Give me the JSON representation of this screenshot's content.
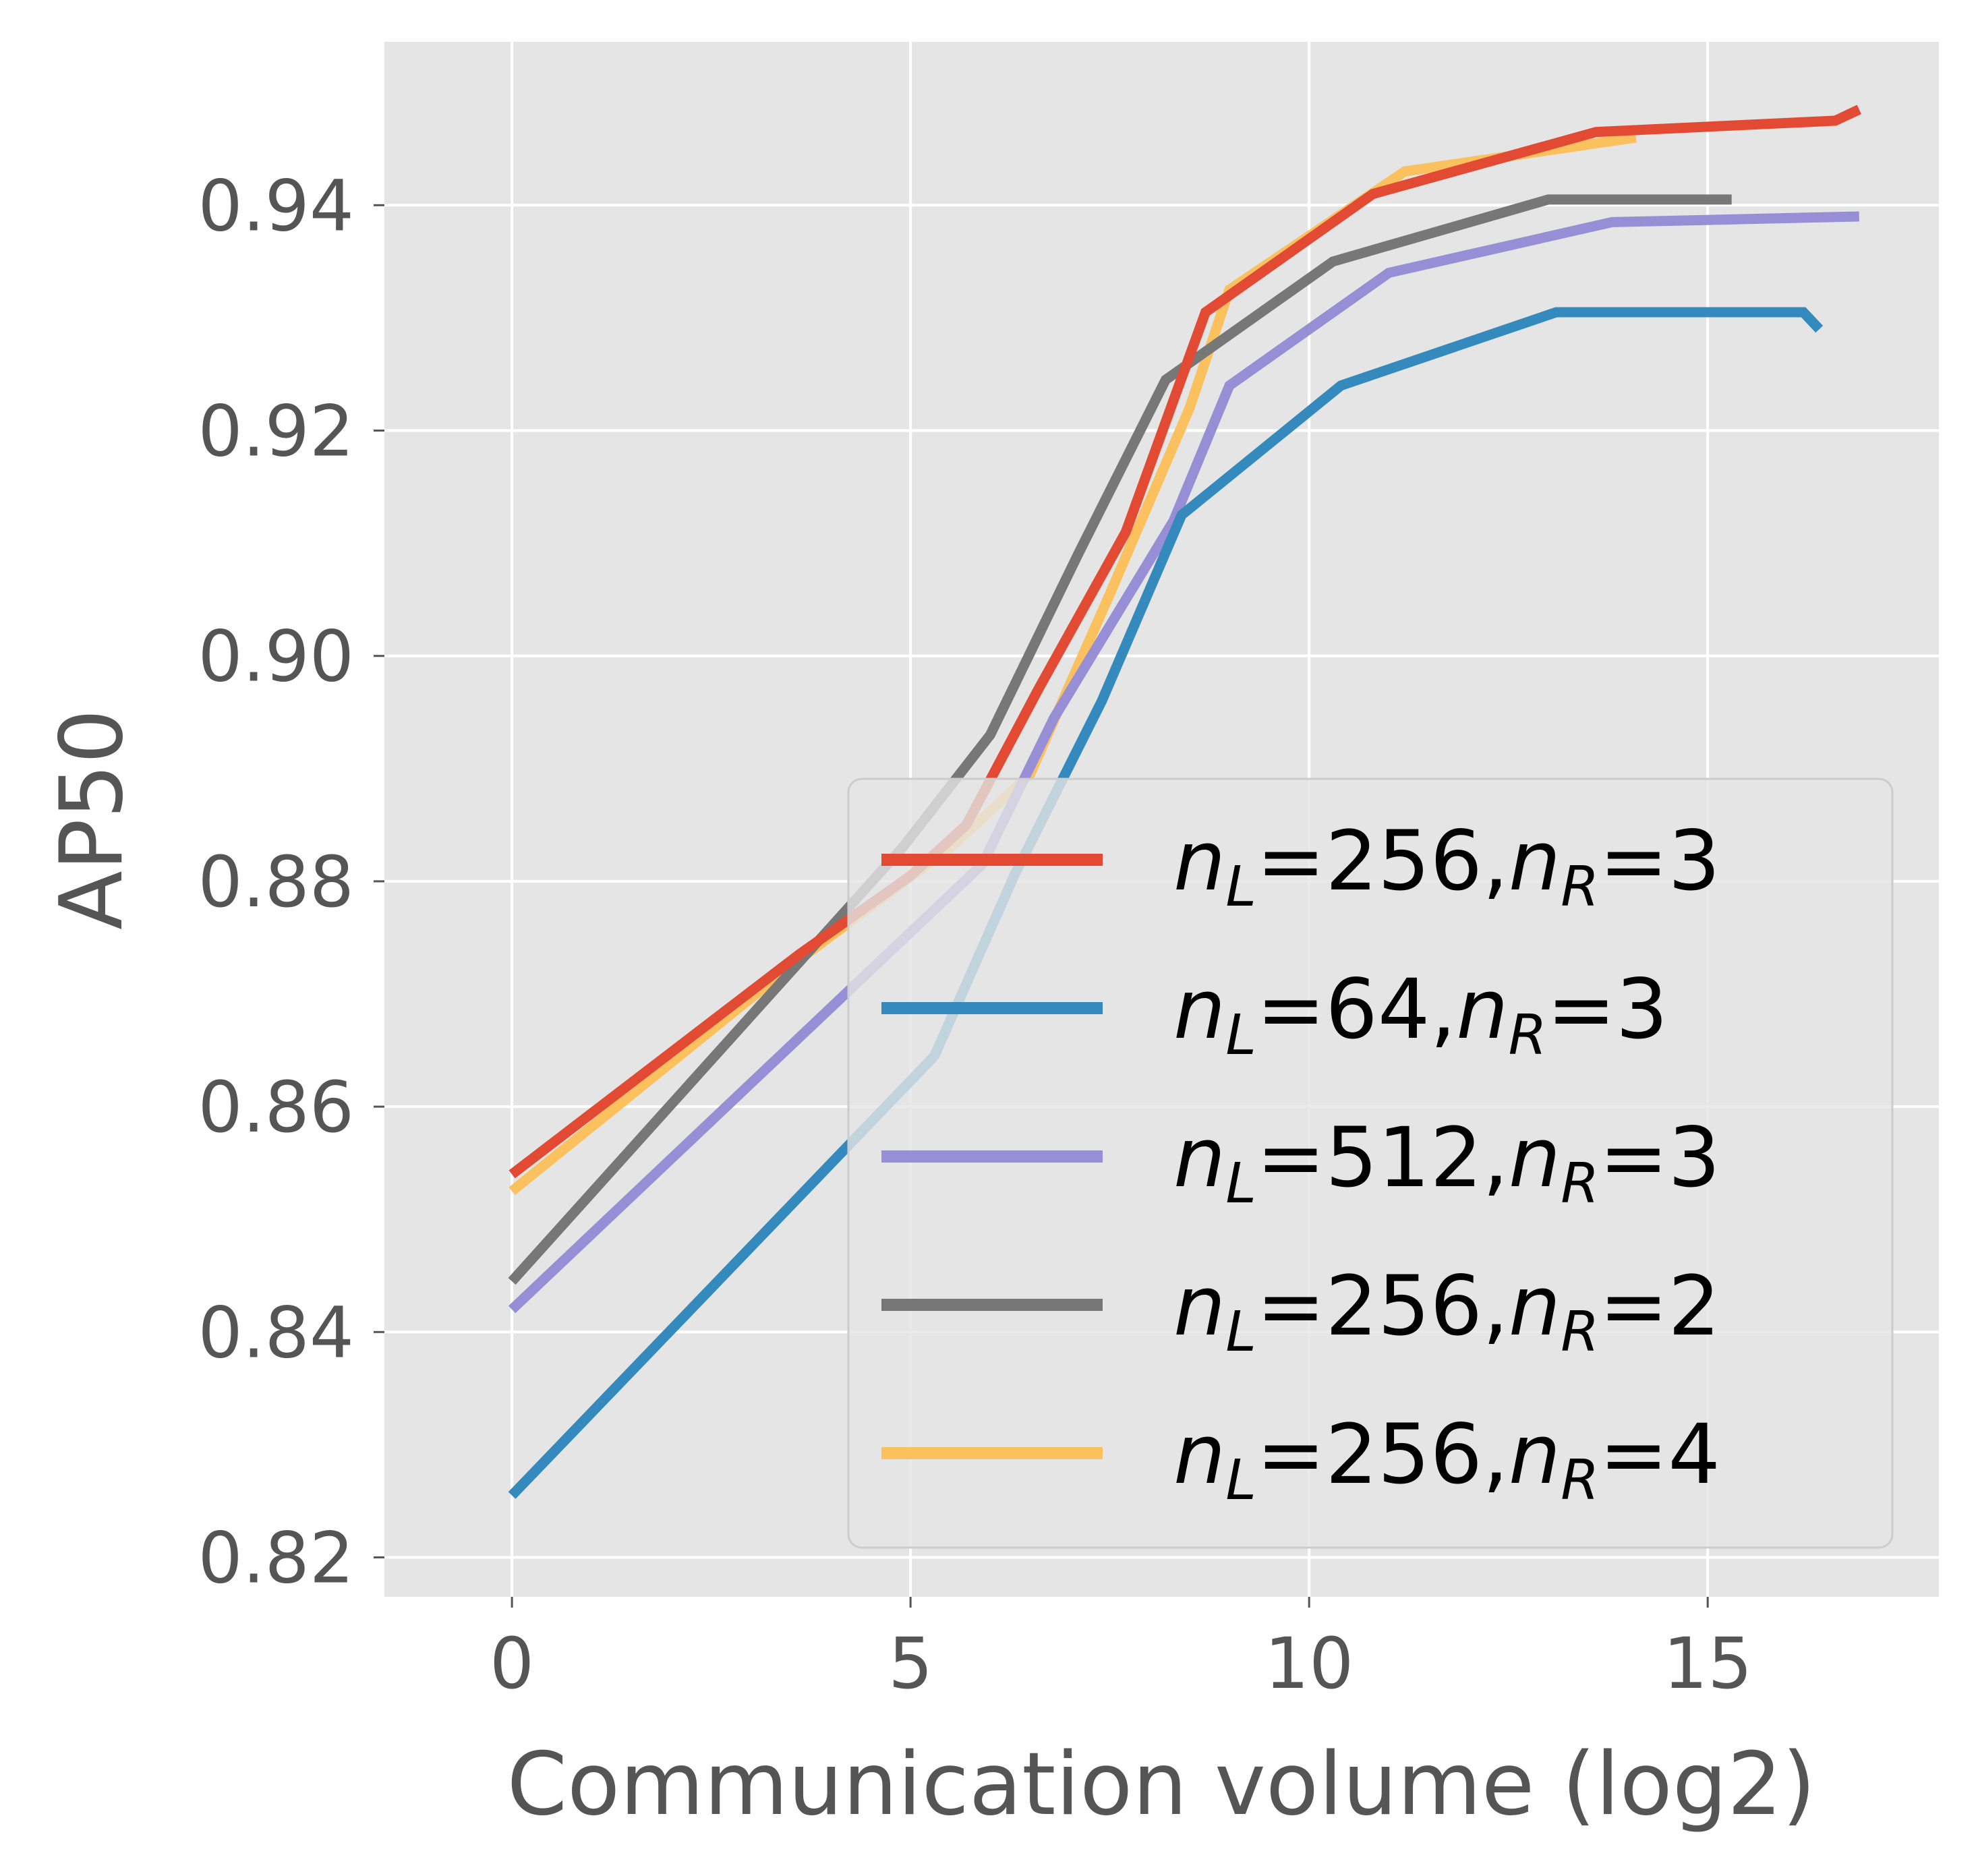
{
  "chart_data": {
    "type": "line",
    "title": "",
    "xlabel": "Communication volume (log2)",
    "ylabel": "AP50",
    "xlim": [
      -1.6,
      17.9
    ],
    "ylim": [
      0.8165,
      0.9545
    ],
    "xticks": [
      0,
      5,
      10,
      15
    ],
    "xtick_labels": [
      "0",
      "5",
      "10",
      "15"
    ],
    "yticks": [
      0.82,
      0.84,
      0.86,
      0.88,
      0.9,
      0.92,
      0.94
    ],
    "ytick_labels": [
      "0.82",
      "0.84",
      "0.86",
      "0.88",
      "0.90",
      "0.92",
      "0.94"
    ],
    "grid": true,
    "legend_position": "lower-right",
    "series": [
      {
        "name": "n_L=256,n_R=3",
        "legend": {
          "n": "n",
          "sub1": "L",
          "mid": "=256,",
          "sub2": "R",
          "tail": "=3"
        },
        "color": "#E24A33",
        "x": [
          0,
          3.6,
          5.0,
          5.7,
          6.6,
          7.7,
          8.7,
          10.8,
          13.6,
          16.6,
          16.9
        ],
        "y": [
          0.854,
          0.8735,
          0.8805,
          0.885,
          0.897,
          0.911,
          0.9305,
          0.941,
          0.9465,
          0.9475,
          0.9485
        ]
      },
      {
        "name": "n_L=64,n_R=3",
        "legend": {
          "n": "n",
          "sub1": "L",
          "mid": "=64,",
          "sub2": "R",
          "tail": "=3"
        },
        "color": "#348ABD",
        "x": [
          0,
          5.3,
          6.3,
          7.4,
          8.4,
          10.4,
          13.1,
          16.2,
          16.4
        ],
        "y": [
          0.8255,
          0.8645,
          0.8805,
          0.896,
          0.9125,
          0.924,
          0.9305,
          0.9305,
          0.929
        ]
      },
      {
        "name": "n_L=512,n_R=3",
        "legend": {
          "n": "n",
          "sub1": "L",
          "mid": "=512,",
          "sub2": "R",
          "tail": "=3"
        },
        "color": "#988ED5",
        "x": [
          0,
          5.9,
          6.8,
          8.3,
          9.0,
          11.0,
          13.8,
          16.9
        ],
        "y": [
          0.842,
          0.8815,
          0.8945,
          0.912,
          0.924,
          0.934,
          0.9385,
          0.939
        ]
      },
      {
        "name": "n_L=256,n_R=2",
        "legend": {
          "n": "n",
          "sub1": "L",
          "mid": "=256,",
          "sub2": "R",
          "tail": "=2"
        },
        "color": "#777777",
        "x": [
          0,
          4.9,
          6.0,
          7.1,
          8.2,
          10.3,
          13.0,
          15.3
        ],
        "y": [
          0.8445,
          0.883,
          0.893,
          0.909,
          0.9245,
          0.935,
          0.9405,
          0.9405
        ]
      },
      {
        "name": "n_L=256,n_R=4",
        "legend": {
          "n": "n",
          "sub1": "L",
          "mid": "=256,",
          "sub2": "R",
          "tail": "=4"
        },
        "color": "#FBC15E",
        "x": [
          0,
          3.5,
          5.5,
          6.5,
          7.5,
          8.5,
          9.0,
          11.2,
          14.1
        ],
        "y": [
          0.8525,
          0.8725,
          0.883,
          0.8895,
          0.9055,
          0.922,
          0.9325,
          0.943,
          0.946
        ]
      }
    ]
  }
}
